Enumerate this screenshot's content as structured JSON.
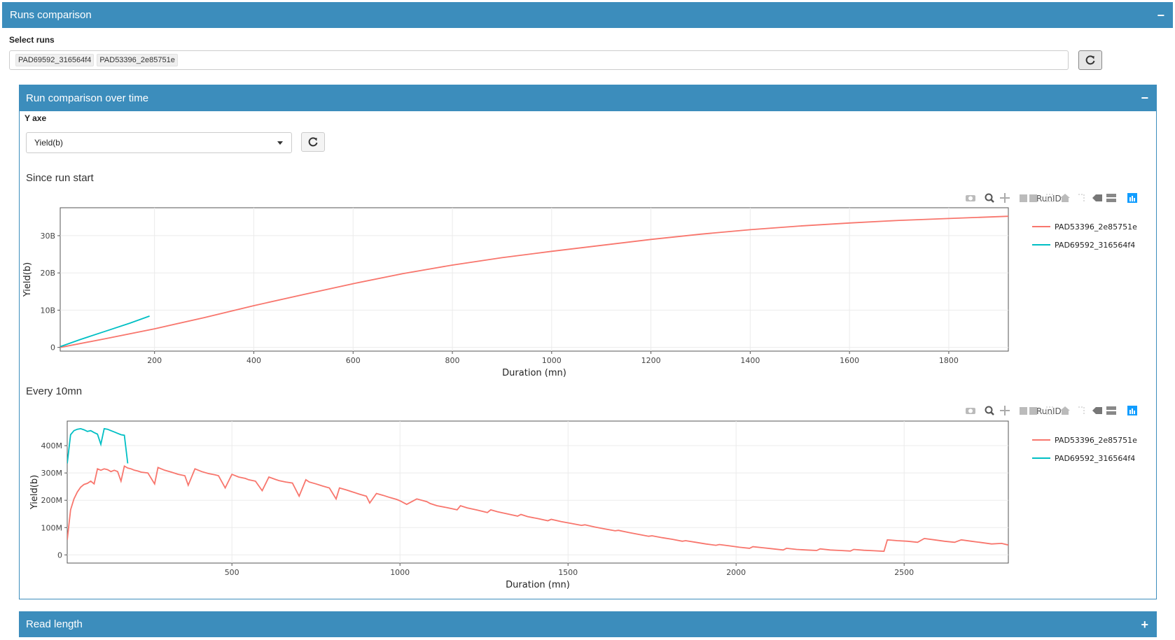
{
  "header": {
    "title": "Runs comparison",
    "collapse": "−"
  },
  "select_runs": {
    "label": "Select runs",
    "selected": [
      "PAD69592_316564f4",
      "PAD53396_2e85751e"
    ]
  },
  "inner": {
    "title": "Run comparison over time",
    "collapse": "−"
  },
  "y_axe": {
    "label": "Y axe",
    "value": "Yield(b)"
  },
  "read_length": {
    "title": "Read length",
    "expand": "+"
  },
  "colors": {
    "accent": "#3c8dbc",
    "run1": "#f8766d",
    "run2": "#00bfc4"
  },
  "chart_data": [
    {
      "type": "line",
      "title": "Since run start",
      "xlabel": "Duration (mn)",
      "ylabel": "Yield(b)",
      "xlim": [
        10,
        1920
      ],
      "ylim": [
        -1000000000,
        37500000000
      ],
      "xticks": [
        200,
        400,
        600,
        800,
        1000,
        1200,
        1400,
        1600,
        1800
      ],
      "yticks": [
        0,
        10000000000,
        20000000000,
        30000000000
      ],
      "yticklabels": [
        "0",
        "10B",
        "20B",
        "30B"
      ],
      "legend_title": "RunID",
      "legend_position": "right",
      "series": [
        {
          "name": "PAD53396_2e85751e",
          "color": "#f8766d",
          "x": [
            10,
            100,
            200,
            300,
            400,
            500,
            600,
            700,
            800,
            900,
            1000,
            1100,
            1200,
            1300,
            1400,
            1500,
            1600,
            1700,
            1800,
            1920
          ],
          "y": [
            0,
            2300000000,
            5000000000,
            8000000000,
            11200000000,
            14200000000,
            17100000000,
            19800000000,
            22100000000,
            24100000000,
            25800000000,
            27400000000,
            29000000000,
            30400000000,
            31600000000,
            32600000000,
            33400000000,
            34100000000,
            34600000000,
            35200000000
          ]
        },
        {
          "name": "PAD69592_316564f4",
          "color": "#00bfc4",
          "x": [
            10,
            50,
            100,
            150,
            190
          ],
          "y": [
            200000000,
            2100000000,
            4300000000,
            6500000000,
            8400000000
          ]
        }
      ]
    },
    {
      "type": "line",
      "title": "Every 10mn",
      "xlabel": "Duration (mn)",
      "ylabel": "Yield(b)",
      "xlim": [
        10,
        2810
      ],
      "ylim": [
        -30000000,
        490000000
      ],
      "xticks": [
        500,
        1000,
        1500,
        2000,
        2500
      ],
      "yticks": [
        0,
        100000000,
        200000000,
        300000000,
        400000000
      ],
      "yticklabels": [
        "0",
        "100M",
        "200M",
        "300M",
        "400M"
      ],
      "legend_title": "RunID",
      "legend_position": "right",
      "series": [
        {
          "name": "PAD53396_2e85751e",
          "color": "#f8766d",
          "x": [
            10,
            20,
            30,
            40,
            50,
            60,
            70,
            80,
            90,
            100,
            110,
            120,
            130,
            140,
            150,
            160,
            170,
            180,
            190,
            200,
            210,
            220,
            230,
            250,
            270,
            280,
            300,
            320,
            340,
            360,
            370,
            390,
            410,
            430,
            450,
            460,
            480,
            500,
            520,
            540,
            550,
            570,
            590,
            610,
            630,
            640,
            660,
            680,
            700,
            720,
            730,
            750,
            770,
            790,
            810,
            820,
            840,
            860,
            880,
            900,
            910,
            930,
            950,
            970,
            990,
            1000,
            1020,
            1050,
            1080,
            1090,
            1110,
            1140,
            1170,
            1180,
            1200,
            1230,
            1260,
            1270,
            1290,
            1320,
            1350,
            1360,
            1380,
            1410,
            1440,
            1450,
            1480,
            1510,
            1540,
            1550,
            1580,
            1610,
            1640,
            1650,
            1680,
            1710,
            1740,
            1750,
            1780,
            1810,
            1840,
            1850,
            1880,
            1910,
            1940,
            1950,
            1980,
            2010,
            2040,
            2050,
            2080,
            2110,
            2140,
            2150,
            2180,
            2210,
            2240,
            2250,
            2280,
            2310,
            2340,
            2350,
            2380,
            2410,
            2440,
            2450,
            2480,
            2510,
            2540,
            2560,
            2590,
            2620,
            2650,
            2670,
            2700,
            2730,
            2760,
            2790,
            2810
          ],
          "y": [
            55000000,
            165000000,
            205000000,
            230000000,
            248000000,
            258000000,
            262000000,
            270000000,
            260000000,
            315000000,
            310000000,
            315000000,
            312000000,
            305000000,
            310000000,
            305000000,
            270000000,
            325000000,
            318000000,
            315000000,
            310000000,
            307000000,
            303000000,
            300000000,
            260000000,
            320000000,
            310000000,
            303000000,
            295000000,
            290000000,
            255000000,
            315000000,
            305000000,
            298000000,
            293000000,
            290000000,
            245000000,
            295000000,
            285000000,
            280000000,
            275000000,
            270000000,
            235000000,
            285000000,
            276000000,
            272000000,
            267000000,
            263000000,
            215000000,
            275000000,
            267000000,
            260000000,
            252000000,
            245000000,
            205000000,
            245000000,
            238000000,
            230000000,
            222000000,
            215000000,
            190000000,
            225000000,
            218000000,
            210000000,
            203000000,
            198000000,
            185000000,
            205000000,
            195000000,
            188000000,
            180000000,
            173000000,
            165000000,
            180000000,
            172000000,
            164000000,
            155000000,
            165000000,
            158000000,
            150000000,
            142000000,
            148000000,
            140000000,
            133000000,
            125000000,
            130000000,
            122000000,
            115000000,
            108000000,
            110000000,
            102000000,
            95000000,
            88000000,
            90000000,
            82000000,
            75000000,
            68000000,
            70000000,
            63000000,
            57000000,
            50000000,
            52000000,
            46000000,
            40000000,
            35000000,
            38000000,
            33000000,
            28000000,
            24000000,
            30000000,
            26000000,
            22000000,
            18000000,
            24000000,
            20000000,
            18000000,
            16000000,
            22000000,
            18000000,
            16000000,
            14000000,
            20000000,
            17000000,
            15000000,
            13000000,
            55000000,
            52000000,
            50000000,
            46000000,
            60000000,
            55000000,
            50000000,
            46000000,
            55000000,
            50000000,
            45000000,
            40000000,
            42000000,
            36000000
          ]
        },
        {
          "name": "PAD69592_316564f4",
          "color": "#00bfc4",
          "x": [
            10,
            20,
            30,
            40,
            50,
            60,
            70,
            80,
            90,
            100,
            110,
            120,
            130,
            140,
            150,
            160,
            170,
            180,
            190
          ],
          "y": [
            335000000,
            440000000,
            455000000,
            460000000,
            462000000,
            458000000,
            452000000,
            455000000,
            448000000,
            442000000,
            405000000,
            462000000,
            460000000,
            455000000,
            450000000,
            445000000,
            440000000,
            438000000,
            335000000
          ]
        }
      ]
    }
  ]
}
